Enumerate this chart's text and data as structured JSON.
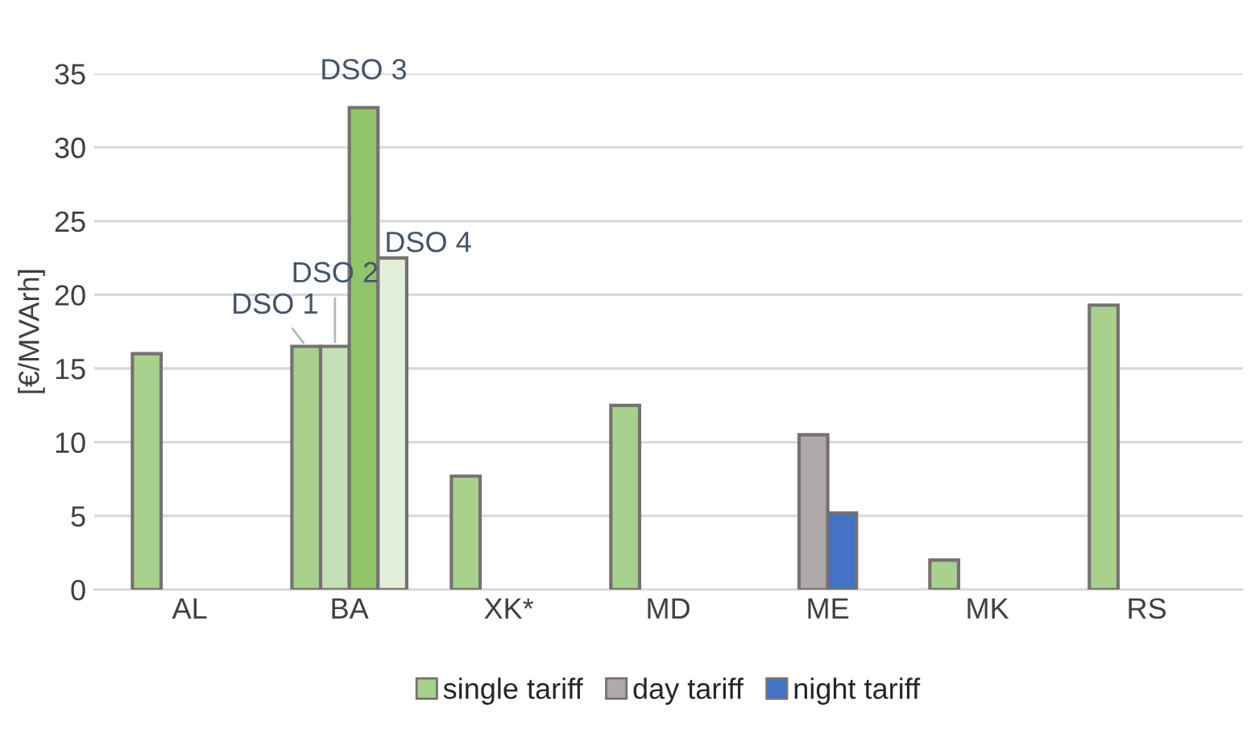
{
  "chart_data": {
    "type": "bar",
    "ylabel": "[€/MVArh]",
    "categories": [
      "AL",
      "BA",
      "XK*",
      "MD",
      "ME",
      "MK",
      "RS"
    ],
    "series": [
      {
        "name": "single tariff",
        "color": "#a9d18e",
        "values": [
          16.0,
          16.5,
          7.7,
          12.5,
          null,
          2.0,
          19.3
        ]
      },
      {
        "name": "day tariff",
        "color": "#aeaaaa",
        "colors": [
          null,
          "#c5e0b4",
          null,
          null,
          "#aeaaaa",
          null,
          null
        ],
        "values": [
          null,
          16.5,
          null,
          null,
          10.5,
          null,
          null
        ]
      },
      {
        "name": "night tariff",
        "color": "#4472c4",
        "colors": [
          null,
          "#92c46c",
          null,
          null,
          "#4472c4",
          null,
          null
        ],
        "values": [
          null,
          32.7,
          null,
          null,
          5.2,
          null,
          null
        ]
      },
      {
        "color": "#e2f0d9",
        "values": [
          null,
          22.5,
          null,
          null,
          null,
          null,
          null
        ]
      }
    ],
    "ylim": [
      0,
      35
    ],
    "yticks": [
      0,
      5,
      10,
      15,
      20,
      25,
      30,
      35
    ],
    "grid": "y",
    "legend": "bottom",
    "annotations": [
      {
        "text": "DSO 1",
        "x": "BA",
        "y": 16.5
      },
      {
        "text": "DSO 2",
        "x": "BA",
        "y": 16.5
      },
      {
        "text": "DSO 3",
        "x": "BA",
        "y": 32.7
      },
      {
        "text": "DSO 4",
        "x": "BA",
        "y": 22.5
      }
    ]
  }
}
